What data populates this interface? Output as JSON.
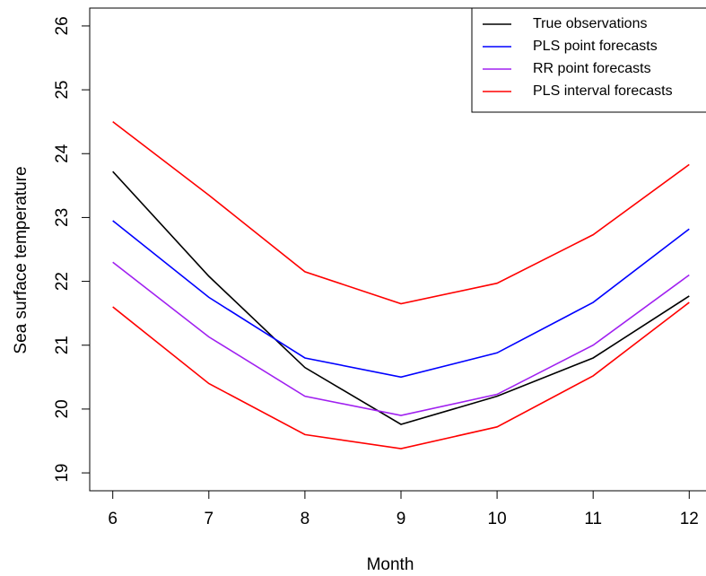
{
  "chart_data": {
    "type": "line",
    "x_label": "Month",
    "y_label": "Sea surface temperature",
    "x": [
      6,
      7,
      8,
      9,
      10,
      11,
      12
    ],
    "xlim": [
      5.76,
      12.24
    ],
    "xticks": [
      6,
      7,
      8,
      9,
      10,
      11,
      12
    ],
    "ylim": [
      18.72,
      26.28
    ],
    "yticks": [
      19,
      20,
      21,
      22,
      23,
      24,
      25,
      26
    ],
    "legend": "top-right",
    "series": [
      {
        "name": "True observations",
        "color": "#000000",
        "values": [
          23.72,
          22.08,
          20.65,
          19.76,
          20.2,
          20.8,
          21.77
        ]
      },
      {
        "name": "PLS point forecasts",
        "color": "#0000ff",
        "values": [
          22.95,
          21.75,
          20.8,
          20.5,
          20.88,
          21.67,
          22.82
        ]
      },
      {
        "name": "RR point forecasts",
        "color": "#a020f0",
        "values": [
          22.3,
          21.13,
          20.2,
          19.9,
          20.23,
          21.0,
          22.1
        ]
      },
      {
        "name": "PLS interval forecasts",
        "color": "#ff0000",
        "upper": [
          24.5,
          23.35,
          22.15,
          21.65,
          21.97,
          22.73,
          23.83
        ],
        "lower": [
          21.6,
          20.4,
          19.6,
          19.38,
          19.72,
          20.52,
          21.67
        ]
      }
    ]
  }
}
